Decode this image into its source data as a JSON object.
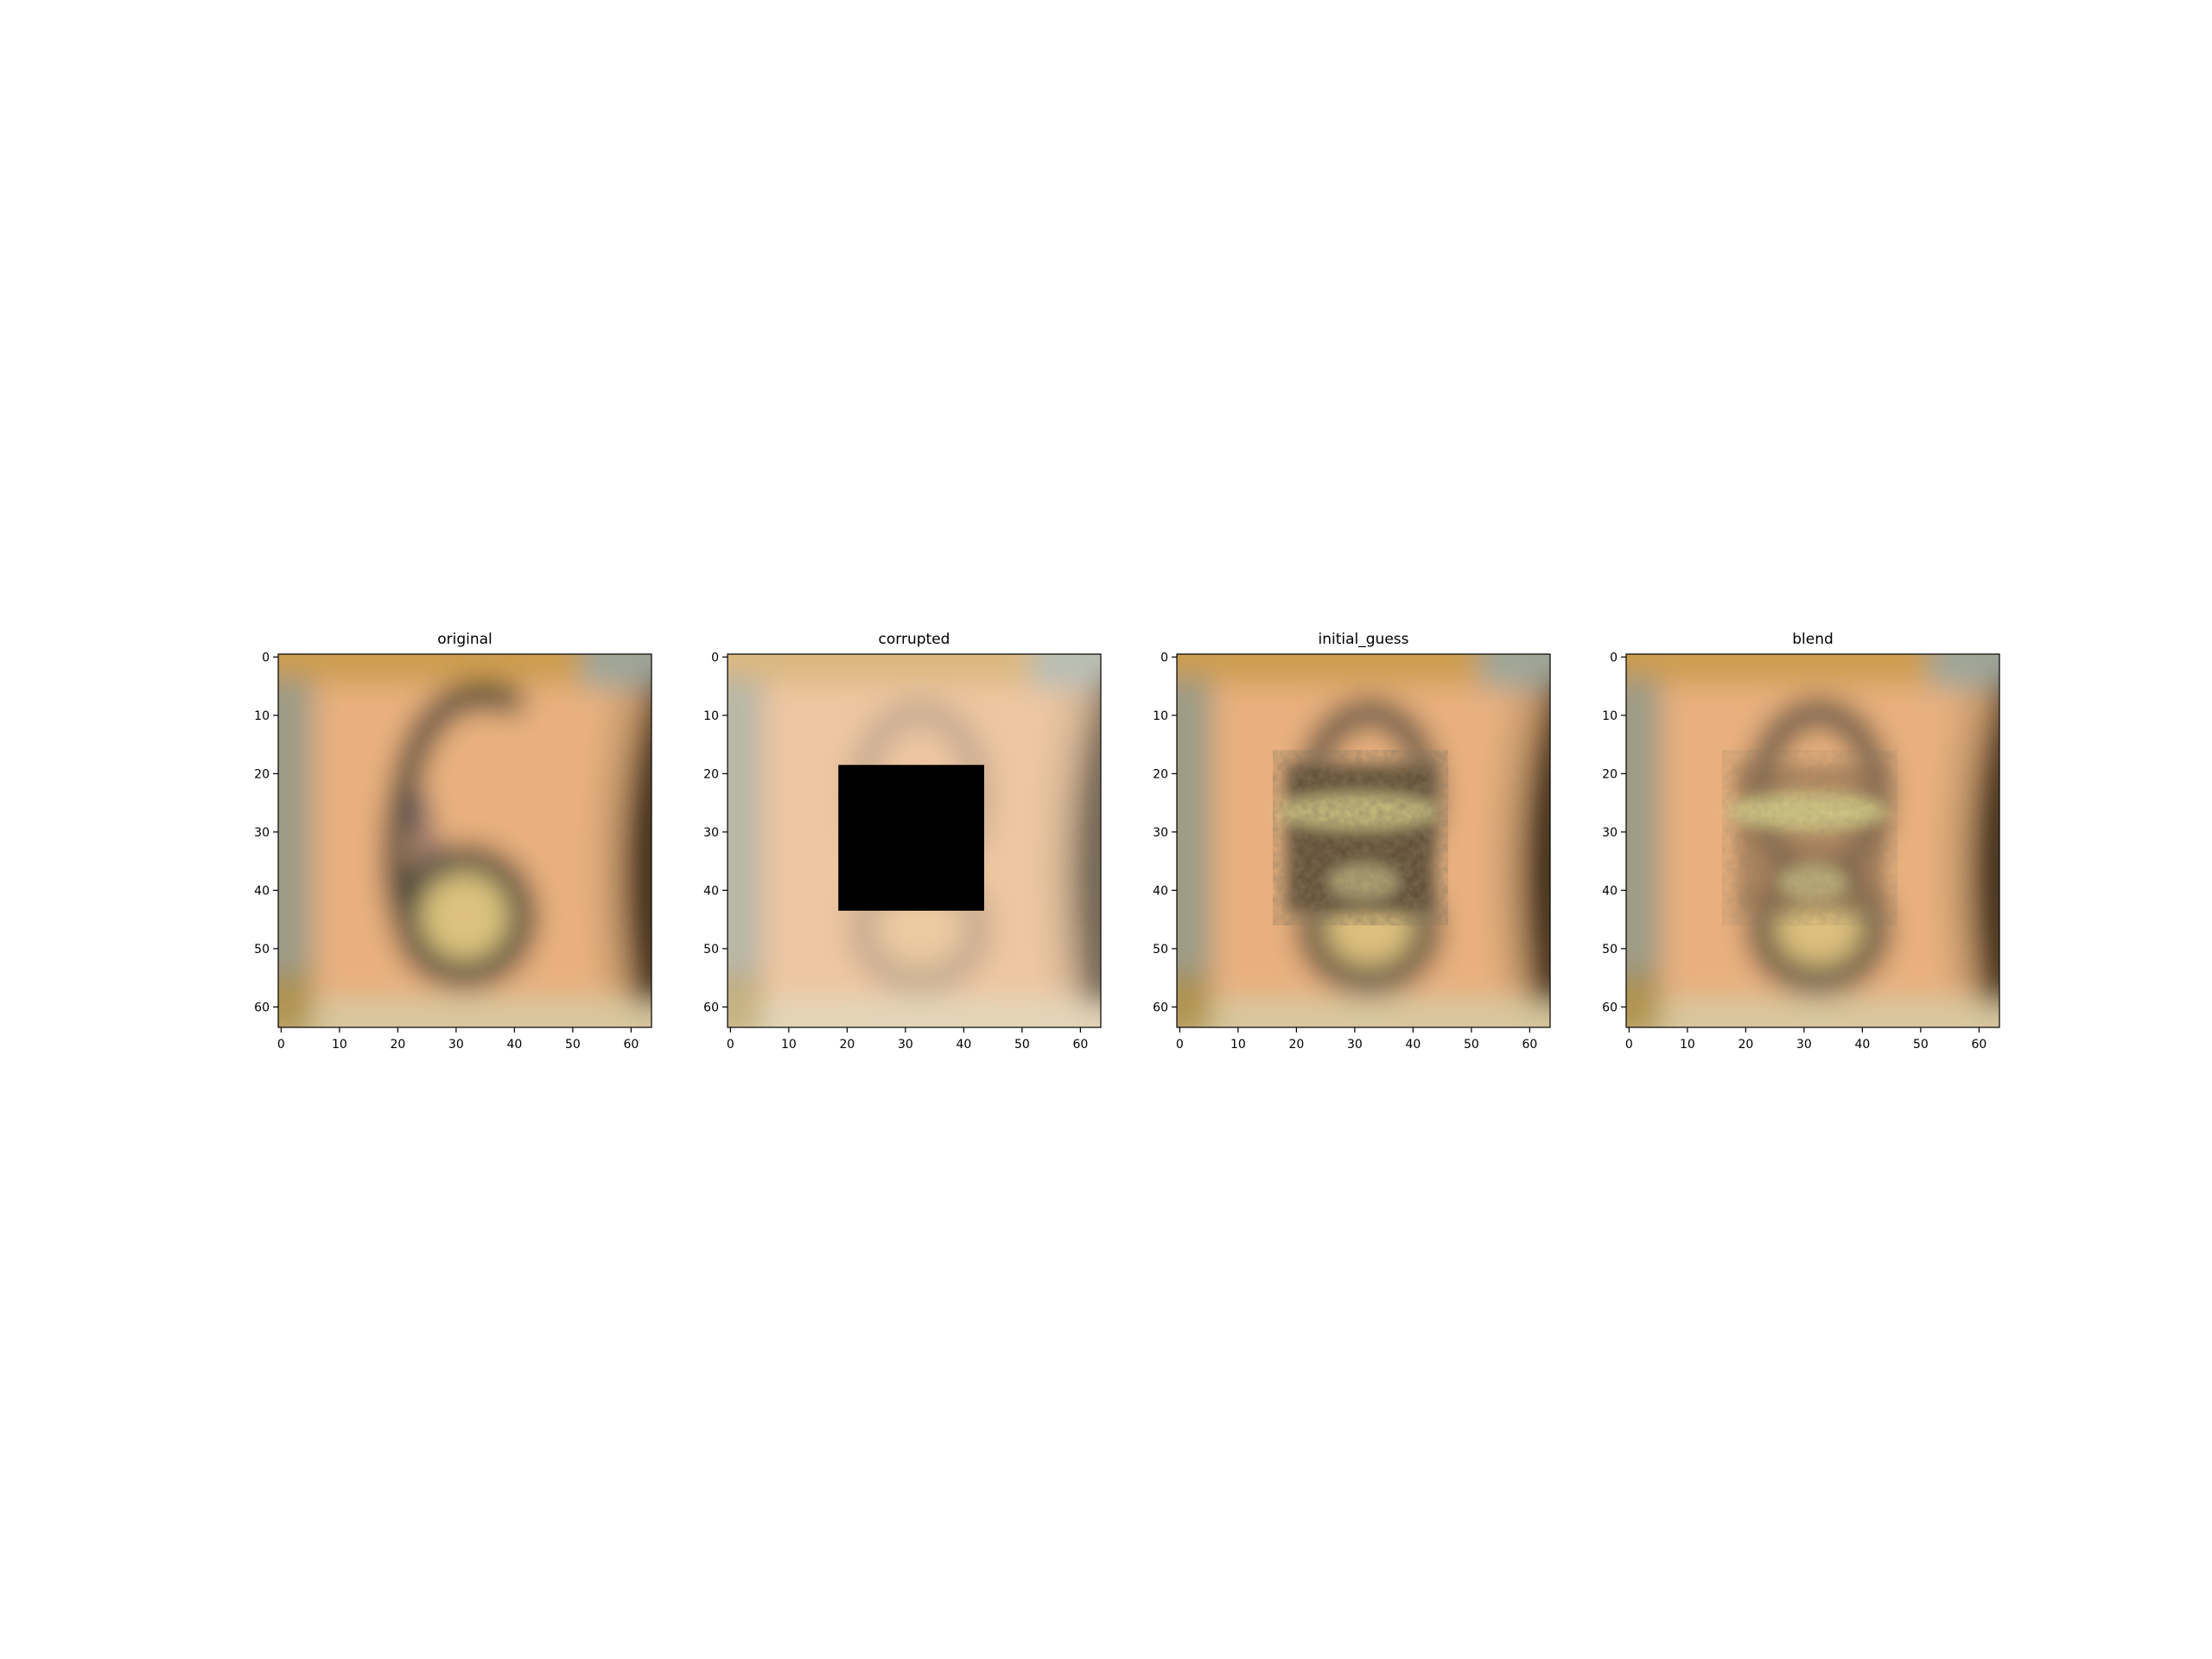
{
  "panels": [
    {
      "title": "original",
      "variant": "original"
    },
    {
      "title": "corrupted",
      "variant": "corrupted"
    },
    {
      "title": "initial_guess",
      "variant": "guess"
    },
    {
      "title": "blend",
      "variant": "blend"
    }
  ],
  "axes": {
    "x_ticks": [
      "0",
      "10",
      "20",
      "30",
      "40",
      "50",
      "60"
    ],
    "y_ticks": [
      "0",
      "10",
      "20",
      "30",
      "40",
      "50",
      "60"
    ]
  },
  "mask": {
    "x_range": [
      19,
      44
    ],
    "y_range": [
      19,
      44
    ]
  },
  "colors": {
    "background": "#e8b07e",
    "top_band": "#c89a48",
    "digit_stroke": "#3d4038",
    "mask": "#000000"
  }
}
